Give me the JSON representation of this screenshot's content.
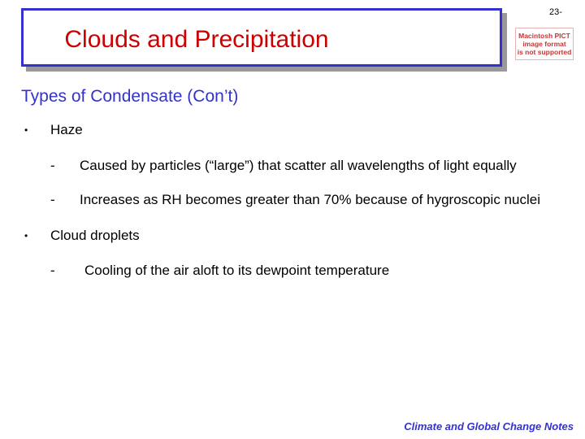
{
  "page_number": "23-",
  "title": "Clouds and Precipitation",
  "pict_placeholder": [
    "Macintosh PICT",
    "image format",
    "is not supported"
  ],
  "subtitle": "Types of Condensate (Con’t)",
  "bullets": [
    {
      "marker": "•",
      "text": "Haze",
      "subitems": [
        {
          "marker": "-",
          "text": "Caused by particles (“large”) that scatter all wavelengths of light equally"
        },
        {
          "marker": "-",
          "text": "Increases as RH becomes greater than 70% because of hygroscopic nuclei"
        }
      ]
    },
    {
      "marker": "•",
      "text": "Cloud droplets",
      "subitems": [
        {
          "marker": "-",
          "text": "Cooling of the air aloft to its dewpoint temperature"
        }
      ]
    }
  ],
  "footer": "Climate and Global Change Notes",
  "colors": {
    "title": "#cc0000",
    "title_border": "#3333cc",
    "subtitle": "#3333cc",
    "footer": "#3333cc"
  }
}
